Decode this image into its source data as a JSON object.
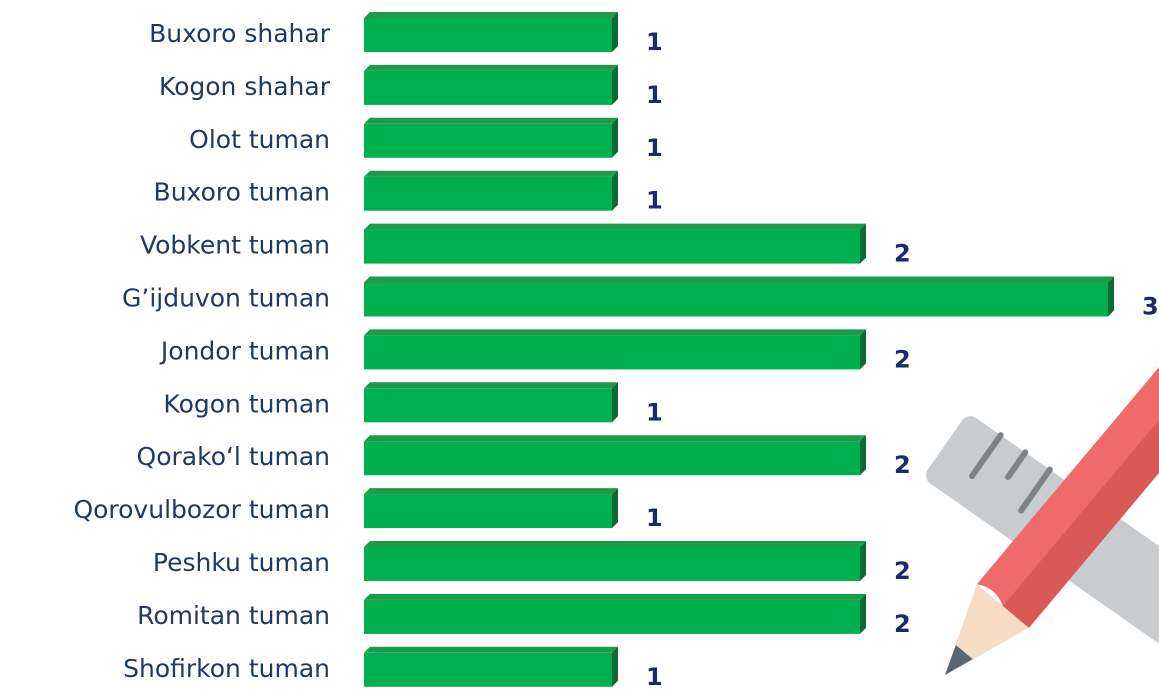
{
  "chart_data": {
    "type": "bar",
    "orientation": "horizontal",
    "categories": [
      "Buxoro shahar",
      "Kogon shahar",
      "Olot tuman",
      "Buxoro tuman",
      "Vobkent tuman",
      "G’ijduvon tuman",
      "Jondor tuman",
      "Kogon tuman",
      "Qorako‘l tuman",
      "Qorovulbozor tuman",
      "Peshku tuman",
      "Romitan tuman",
      "Shofirkon tuman"
    ],
    "values": [
      1,
      1,
      1,
      1,
      2,
      3,
      2,
      1,
      2,
      1,
      2,
      2,
      1
    ],
    "color": "#00b050",
    "xlim": [
      0,
      3
    ]
  }
}
